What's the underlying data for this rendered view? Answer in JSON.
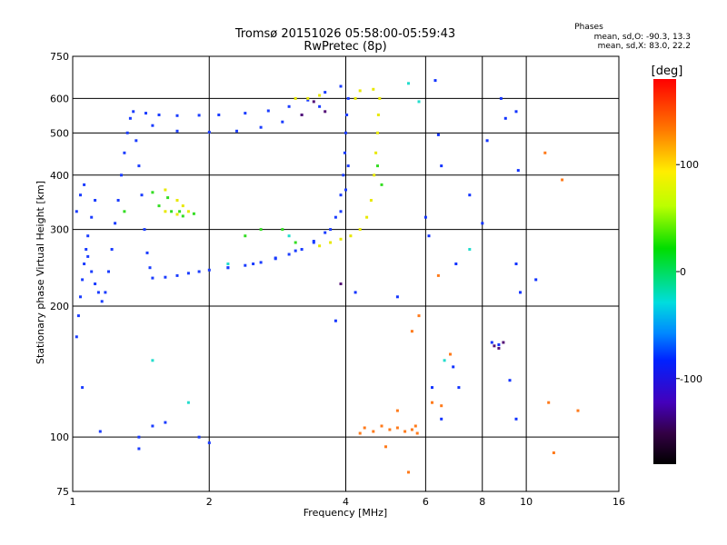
{
  "chart_data": {
    "type": "scatter",
    "title": "Tromsø 20151026 05:58:00-05:59:43",
    "subtitle": "RwPretec (8p)",
    "stats": {
      "heading": "Phases",
      "line1": "mean, sd,O: -90.3, 13.3",
      "line2": "mean, sd,X:  83.0, 22.2"
    },
    "xlabel": "Frequency [MHz]",
    "ylabel": "Stationary phase Virtual Height [km]",
    "xscale": "log",
    "yscale": "log",
    "xlim": [
      1,
      16
    ],
    "ylim": [
      75,
      750
    ],
    "xticks": [
      1,
      2,
      4,
      6,
      8,
      10,
      16
    ],
    "xtick_labels": [
      "1",
      "2",
      "4",
      "6",
      "8",
      "10",
      "16"
    ],
    "yticks": [
      75,
      100,
      200,
      300,
      400,
      500,
      600,
      750
    ],
    "ytick_labels": [
      "75",
      "100",
      "200",
      "300",
      "400",
      "500",
      "600",
      "750"
    ],
    "grid": true,
    "colorbar": {
      "label": "[deg]",
      "range": [
        -180,
        180
      ],
      "ticks": [
        100,
        0,
        -100
      ],
      "tick_labels": [
        "100",
        "0",
        "-100"
      ]
    },
    "series": [
      {
        "points": [
          [
            1.02,
            170
          ],
          [
            1.03,
            190
          ],
          [
            1.04,
            210
          ],
          [
            1.05,
            230
          ],
          [
            1.06,
            250
          ],
          [
            1.07,
            270
          ],
          [
            1.08,
            290
          ],
          [
            1.1,
            320
          ],
          [
            1.12,
            350
          ],
          [
            1.02,
            330
          ],
          [
            1.04,
            360
          ],
          [
            1.06,
            380
          ],
          [
            1.08,
            260
          ],
          [
            1.1,
            240
          ],
          [
            1.12,
            225
          ],
          [
            1.14,
            215
          ],
          [
            1.16,
            205
          ],
          [
            1.18,
            215
          ],
          [
            1.2,
            240
          ],
          [
            1.22,
            270
          ],
          [
            1.24,
            310
          ],
          [
            1.26,
            350
          ],
          [
            1.28,
            400
          ],
          [
            1.3,
            450
          ],
          [
            1.32,
            500
          ],
          [
            1.34,
            540
          ],
          [
            1.36,
            560
          ],
          [
            1.38,
            480
          ],
          [
            1.4,
            420
          ],
          [
            1.42,
            360
          ],
          [
            1.44,
            300
          ],
          [
            1.46,
            265
          ],
          [
            1.48,
            245
          ],
          [
            1.5,
            232
          ],
          [
            1.6,
            233
          ],
          [
            1.7,
            235
          ],
          [
            1.8,
            238
          ],
          [
            1.9,
            240
          ],
          [
            2.0,
            242
          ],
          [
            2.2,
            245
          ],
          [
            2.4,
            248
          ],
          [
            2.6,
            252
          ],
          [
            2.8,
            257
          ],
          [
            3.0,
            263
          ],
          [
            3.2,
            270
          ],
          [
            3.4,
            280
          ],
          [
            3.6,
            295
          ],
          [
            3.8,
            320
          ],
          [
            3.9,
            360
          ],
          [
            3.95,
            400
          ],
          [
            3.98,
            450
          ],
          [
            4.0,
            500
          ],
          [
            4.02,
            550
          ],
          [
            4.05,
            600
          ],
          [
            1.45,
            555
          ],
          [
            1.55,
            550
          ],
          [
            1.7,
            548
          ],
          [
            1.9,
            549
          ],
          [
            2.1,
            550
          ],
          [
            2.4,
            555
          ],
          [
            2.7,
            562
          ],
          [
            3.0,
            575
          ],
          [
            3.3,
            595
          ],
          [
            3.6,
            620
          ],
          [
            3.9,
            640
          ],
          [
            1.5,
            520
          ],
          [
            1.7,
            505
          ],
          [
            2.0,
            502
          ],
          [
            2.3,
            505
          ],
          [
            2.6,
            515
          ],
          [
            2.9,
            530
          ],
          [
            3.2,
            550
          ],
          [
            3.5,
            575
          ],
          [
            2.2,
            245
          ],
          [
            2.5,
            250
          ],
          [
            2.8,
            258
          ],
          [
            3.1,
            268
          ],
          [
            3.4,
            282
          ],
          [
            3.7,
            300
          ],
          [
            3.9,
            330
          ],
          [
            4.0,
            370
          ],
          [
            4.05,
            420
          ],
          [
            1.05,
            130
          ],
          [
            1.15,
            103
          ],
          [
            1.4,
            100
          ],
          [
            1.5,
            106
          ],
          [
            1.6,
            108
          ],
          [
            1.9,
            100
          ],
          [
            2.0,
            97
          ],
          [
            1.4,
            94
          ]
        ],
        "color": "#1a3cff"
      },
      {
        "points": [
          [
            3.5,
            275
          ],
          [
            3.7,
            280
          ],
          [
            3.9,
            285
          ],
          [
            4.1,
            290
          ],
          [
            4.3,
            300
          ],
          [
            4.45,
            320
          ],
          [
            4.55,
            350
          ],
          [
            4.62,
            400
          ],
          [
            4.66,
            450
          ],
          [
            4.7,
            500
          ],
          [
            4.72,
            550
          ],
          [
            4.75,
            600
          ],
          [
            4.6,
            630
          ],
          [
            4.3,
            625
          ],
          [
            4.2,
            600
          ],
          [
            3.1,
            600
          ],
          [
            3.3,
            600
          ],
          [
            3.5,
            610
          ],
          [
            1.6,
            370
          ],
          [
            1.7,
            350
          ],
          [
            1.75,
            340
          ],
          [
            1.8,
            330
          ],
          [
            1.7,
            325
          ],
          [
            1.6,
            330
          ]
        ],
        "color": "#e8e800"
      },
      {
        "points": [
          [
            1.55,
            340
          ],
          [
            1.65,
            330
          ],
          [
            1.75,
            322
          ],
          [
            1.85,
            326
          ],
          [
            1.5,
            365
          ],
          [
            1.62,
            355
          ],
          [
            1.72,
            330
          ],
          [
            2.4,
            290
          ],
          [
            2.6,
            300
          ],
          [
            2.9,
            300
          ],
          [
            3.1,
            280
          ],
          [
            1.3,
            330
          ],
          [
            4.7,
            420
          ],
          [
            4.8,
            380
          ]
        ],
        "color": "#33dd22"
      },
      {
        "points": [
          [
            4.4,
            105
          ],
          [
            4.6,
            103
          ],
          [
            4.8,
            106
          ],
          [
            5.0,
            104
          ],
          [
            5.2,
            105
          ],
          [
            5.4,
            103
          ],
          [
            5.6,
            104
          ],
          [
            5.7,
            106
          ],
          [
            5.75,
            102
          ],
          [
            4.3,
            102
          ],
          [
            5.8,
            190
          ],
          [
            5.6,
            175
          ],
          [
            6.8,
            155
          ],
          [
            4.9,
            95
          ],
          [
            6.4,
            235
          ],
          [
            6.2,
            120
          ],
          [
            6.5,
            118
          ],
          [
            5.2,
            115
          ],
          [
            11.0,
            450
          ],
          [
            12.0,
            390
          ],
          [
            11.2,
            120
          ],
          [
            13.0,
            115
          ],
          [
            5.5,
            83
          ],
          [
            11.5,
            92
          ]
        ],
        "color": "#ff7a1a"
      },
      {
        "points": [
          [
            6.0,
            320
          ],
          [
            6.1,
            290
          ],
          [
            6.3,
            660
          ],
          [
            6.4,
            495
          ],
          [
            6.5,
            420
          ],
          [
            7.0,
            250
          ],
          [
            7.5,
            360
          ],
          [
            8.0,
            310
          ],
          [
            8.2,
            480
          ],
          [
            8.8,
            600
          ],
          [
            9.0,
            540
          ],
          [
            9.5,
            560
          ],
          [
            9.6,
            410
          ],
          [
            9.5,
            250
          ],
          [
            9.7,
            215
          ],
          [
            10.5,
            230
          ],
          [
            8.4,
            165
          ],
          [
            8.7,
            163
          ],
          [
            9.2,
            135
          ],
          [
            9.5,
            110
          ],
          [
            6.9,
            145
          ],
          [
            7.1,
            130
          ],
          [
            6.5,
            110
          ],
          [
            3.8,
            185
          ],
          [
            4.2,
            215
          ],
          [
            5.2,
            210
          ],
          [
            6.2,
            130
          ]
        ],
        "color": "#1133ff"
      },
      {
        "points": [
          [
            8.5,
            162
          ],
          [
            8.7,
            160
          ],
          [
            8.9,
            165
          ],
          [
            3.9,
            225
          ],
          [
            3.2,
            550
          ],
          [
            3.4,
            590
          ],
          [
            3.6,
            560
          ]
        ],
        "color": "#551177"
      },
      {
        "points": [
          [
            1.5,
            150
          ],
          [
            1.8,
            120
          ],
          [
            5.5,
            650
          ],
          [
            5.8,
            590
          ],
          [
            6.6,
            150
          ],
          [
            7.5,
            270
          ],
          [
            3.0,
            290
          ],
          [
            2.2,
            250
          ]
        ],
        "color": "#22ddcc"
      }
    ]
  }
}
